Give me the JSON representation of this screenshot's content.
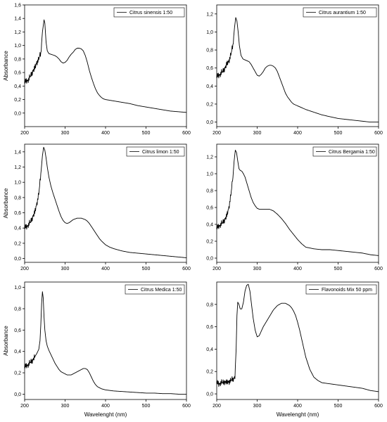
{
  "chart_data": [
    {
      "type": "line",
      "ylabel": "Absorbance",
      "xlabel": "",
      "xlim": [
        200,
        600
      ],
      "ylim": [
        -0.2,
        1.6
      ],
      "xticks": [
        "200",
        "300",
        "400",
        "500",
        "600"
      ],
      "yticks": [
        "0,0",
        "0,2",
        "0,4",
        "0,6",
        "0,8",
        "1,0",
        "1,2",
        "1,4",
        "1,6"
      ],
      "legend_position": "top-right",
      "series": [
        {
          "name": "Citrus sinensis 1:50",
          "noise_region": [
            200,
            242
          ],
          "x": [
            200,
            205,
            210,
            215,
            220,
            225,
            230,
            235,
            240,
            244,
            248,
            250,
            253,
            256,
            260,
            265,
            270,
            275,
            280,
            285,
            290,
            295,
            300,
            305,
            310,
            315,
            320,
            325,
            330,
            335,
            340,
            345,
            350,
            355,
            360,
            365,
            370,
            375,
            380,
            385,
            390,
            395,
            400,
            410,
            420,
            440,
            460,
            480,
            500,
            520,
            540,
            560,
            580,
            600
          ],
          "y": [
            0.45,
            0.48,
            0.5,
            0.55,
            0.62,
            0.66,
            0.75,
            0.8,
            0.88,
            1.2,
            1.38,
            1.33,
            1.05,
            0.92,
            0.88,
            0.87,
            0.86,
            0.85,
            0.83,
            0.8,
            0.76,
            0.74,
            0.75,
            0.78,
            0.83,
            0.87,
            0.9,
            0.94,
            0.96,
            0.96,
            0.95,
            0.92,
            0.85,
            0.75,
            0.63,
            0.53,
            0.44,
            0.36,
            0.3,
            0.26,
            0.23,
            0.21,
            0.2,
            0.19,
            0.18,
            0.16,
            0.14,
            0.11,
            0.09,
            0.07,
            0.05,
            0.03,
            0.02,
            0.01
          ]
        }
      ]
    },
    {
      "type": "line",
      "ylabel": "",
      "xlabel": "",
      "xlim": [
        200,
        600
      ],
      "ylim": [
        -0.05,
        1.3
      ],
      "xticks": [
        "200",
        "300",
        "400",
        "500",
        "600"
      ],
      "yticks": [
        "0,0",
        "0,2",
        "0,4",
        "0,6",
        "0,8",
        "1,0",
        "1,2"
      ],
      "legend_position": "top-right",
      "series": [
        {
          "name": "Citrus aurantium 1:50",
          "noise_region": [
            200,
            242
          ],
          "x": [
            200,
            205,
            210,
            215,
            220,
            225,
            230,
            235,
            240,
            244,
            247,
            250,
            253,
            256,
            260,
            265,
            270,
            275,
            280,
            285,
            290,
            295,
            300,
            305,
            310,
            315,
            320,
            325,
            330,
            335,
            340,
            345,
            350,
            355,
            360,
            365,
            370,
            375,
            380,
            385,
            390,
            400,
            410,
            420,
            440,
            460,
            480,
            500,
            520,
            540,
            560,
            580,
            600
          ],
          "y": [
            0.5,
            0.52,
            0.54,
            0.56,
            0.6,
            0.64,
            0.68,
            0.75,
            0.85,
            1.05,
            1.16,
            1.12,
            1.0,
            0.85,
            0.74,
            0.7,
            0.69,
            0.68,
            0.67,
            0.64,
            0.6,
            0.56,
            0.52,
            0.51,
            0.53,
            0.56,
            0.6,
            0.62,
            0.63,
            0.63,
            0.62,
            0.6,
            0.56,
            0.5,
            0.44,
            0.38,
            0.32,
            0.28,
            0.25,
            0.22,
            0.2,
            0.18,
            0.16,
            0.14,
            0.11,
            0.08,
            0.06,
            0.04,
            0.03,
            0.02,
            0.01,
            0.0,
            0.0
          ]
        }
      ]
    },
    {
      "type": "line",
      "ylabel": "Absorbance",
      "xlabel": "",
      "xlim": [
        200,
        600
      ],
      "ylim": [
        -0.05,
        1.5
      ],
      "xticks": [
        "200",
        "300",
        "400",
        "500",
        "600"
      ],
      "yticks": [
        "0,0",
        "0,2",
        "0,4",
        "0,6",
        "0,8",
        "1,0",
        "1,2",
        "1,4"
      ],
      "legend_position": "top-right",
      "series": [
        {
          "name": "Citrus limon 1:50",
          "noise_region": [
            200,
            240
          ],
          "x": [
            200,
            205,
            210,
            215,
            220,
            225,
            230,
            235,
            240,
            244,
            247,
            250,
            253,
            256,
            260,
            265,
            270,
            275,
            280,
            285,
            290,
            295,
            300,
            305,
            310,
            315,
            320,
            325,
            330,
            335,
            340,
            345,
            350,
            355,
            360,
            365,
            370,
            375,
            380,
            385,
            390,
            400,
            410,
            420,
            440,
            460,
            480,
            500,
            520,
            540,
            560,
            580,
            600
          ],
          "y": [
            0.4,
            0.42,
            0.45,
            0.48,
            0.55,
            0.6,
            0.72,
            0.85,
            1.1,
            1.35,
            1.46,
            1.42,
            1.32,
            1.2,
            1.07,
            0.95,
            0.86,
            0.78,
            0.7,
            0.62,
            0.55,
            0.5,
            0.47,
            0.46,
            0.47,
            0.49,
            0.51,
            0.52,
            0.53,
            0.53,
            0.53,
            0.52,
            0.51,
            0.49,
            0.46,
            0.42,
            0.38,
            0.34,
            0.3,
            0.26,
            0.23,
            0.18,
            0.15,
            0.13,
            0.1,
            0.08,
            0.07,
            0.06,
            0.05,
            0.04,
            0.03,
            0.02,
            0.01
          ]
        }
      ]
    },
    {
      "type": "line",
      "ylabel": "",
      "xlabel": "",
      "xlim": [
        200,
        600
      ],
      "ylim": [
        -0.05,
        1.35
      ],
      "xticks": [
        "200",
        "300",
        "400",
        "500",
        "600"
      ],
      "yticks": [
        "0,0",
        "0,2",
        "0,4",
        "0,6",
        "0,8",
        "1,0",
        "1,2"
      ],
      "legend_position": "top-right",
      "series": [
        {
          "name": "Citrus Bergamia 1:50",
          "noise_region": [
            200,
            238
          ],
          "x": [
            200,
            205,
            210,
            215,
            220,
            225,
            230,
            235,
            240,
            243,
            246,
            249,
            252,
            255,
            258,
            262,
            266,
            270,
            275,
            280,
            285,
            290,
            295,
            300,
            305,
            310,
            315,
            320,
            325,
            330,
            335,
            340,
            345,
            350,
            360,
            370,
            380,
            390,
            400,
            410,
            420,
            440,
            460,
            480,
            500,
            520,
            540,
            560,
            580,
            600
          ],
          "y": [
            0.35,
            0.38,
            0.4,
            0.42,
            0.46,
            0.5,
            0.6,
            0.75,
            0.95,
            1.15,
            1.28,
            1.25,
            1.15,
            1.06,
            1.04,
            1.03,
            1.0,
            0.96,
            0.88,
            0.8,
            0.72,
            0.66,
            0.62,
            0.59,
            0.58,
            0.58,
            0.58,
            0.58,
            0.58,
            0.58,
            0.57,
            0.56,
            0.54,
            0.52,
            0.47,
            0.41,
            0.34,
            0.28,
            0.22,
            0.17,
            0.13,
            0.11,
            0.1,
            0.1,
            0.09,
            0.08,
            0.07,
            0.06,
            0.04,
            0.03
          ]
        }
      ]
    },
    {
      "type": "line",
      "ylabel": "Absorbance",
      "xlabel": "Wavelenght (nm)",
      "xlim": [
        200,
        600
      ],
      "ylim": [
        -0.05,
        1.05
      ],
      "xticks": [
        "200",
        "300",
        "400",
        "500",
        "600"
      ],
      "yticks": [
        "0,0",
        "0,2",
        "0,4",
        "0,6",
        "0,8",
        "1,0"
      ],
      "legend_position": "top-right",
      "series": [
        {
          "name": "Citrus Medica 1:50",
          "noise_region": [
            200,
            225
          ],
          "x": [
            200,
            205,
            210,
            215,
            220,
            225,
            230,
            235,
            238,
            240,
            242,
            244,
            246,
            248,
            250,
            253,
            256,
            260,
            265,
            270,
            275,
            280,
            285,
            290,
            295,
            300,
            305,
            310,
            315,
            320,
            325,
            330,
            335,
            340,
            345,
            350,
            355,
            360,
            365,
            370,
            375,
            380,
            385,
            390,
            400,
            410,
            420,
            440,
            460,
            480,
            500,
            520,
            540,
            560,
            580,
            600
          ],
          "y": [
            0.25,
            0.27,
            0.28,
            0.3,
            0.32,
            0.35,
            0.38,
            0.42,
            0.5,
            0.65,
            0.85,
            0.96,
            0.9,
            0.72,
            0.6,
            0.5,
            0.45,
            0.41,
            0.37,
            0.33,
            0.29,
            0.26,
            0.23,
            0.21,
            0.2,
            0.19,
            0.18,
            0.18,
            0.18,
            0.19,
            0.2,
            0.21,
            0.22,
            0.23,
            0.24,
            0.24,
            0.23,
            0.2,
            0.16,
            0.12,
            0.09,
            0.07,
            0.06,
            0.05,
            0.04,
            0.035,
            0.03,
            0.025,
            0.02,
            0.015,
            0.01,
            0.01,
            0.005,
            0.005,
            0.0,
            0.0
          ]
        }
      ]
    },
    {
      "type": "line",
      "ylabel": "",
      "xlabel": "Wavelenght (nm)",
      "xlim": [
        200,
        600
      ],
      "ylim": [
        -0.05,
        1.0
      ],
      "xticks": [
        "200",
        "300",
        "400",
        "500",
        "600"
      ],
      "yticks": [
        "0,0",
        "0,2",
        "0,4",
        "0,6",
        "0,8"
      ],
      "legend_position": "top-right",
      "series": [
        {
          "name": "Flavonoids Mix 50 ppm",
          "noise_region": [
            200,
            245
          ],
          "x": [
            200,
            205,
            210,
            215,
            220,
            225,
            230,
            235,
            240,
            245,
            248,
            250,
            252,
            255,
            258,
            262,
            266,
            270,
            274,
            278,
            282,
            286,
            290,
            295,
            300,
            305,
            310,
            315,
            320,
            325,
            330,
            335,
            340,
            345,
            350,
            355,
            360,
            365,
            370,
            375,
            380,
            385,
            390,
            395,
            400,
            405,
            410,
            415,
            420,
            430,
            440,
            450,
            460,
            480,
            500,
            520,
            540,
            560,
            580,
            600
          ],
          "y": [
            0.1,
            0.09,
            0.1,
            0.1,
            0.11,
            0.1,
            0.11,
            0.12,
            0.13,
            0.16,
            0.4,
            0.7,
            0.82,
            0.8,
            0.76,
            0.76,
            0.82,
            0.92,
            0.97,
            0.98,
            0.92,
            0.8,
            0.68,
            0.57,
            0.51,
            0.52,
            0.56,
            0.6,
            0.63,
            0.66,
            0.69,
            0.72,
            0.75,
            0.77,
            0.79,
            0.8,
            0.81,
            0.81,
            0.81,
            0.8,
            0.79,
            0.77,
            0.74,
            0.7,
            0.64,
            0.57,
            0.49,
            0.41,
            0.33,
            0.22,
            0.15,
            0.12,
            0.1,
            0.09,
            0.08,
            0.07,
            0.06,
            0.05,
            0.03,
            0.02
          ]
        }
      ]
    }
  ]
}
